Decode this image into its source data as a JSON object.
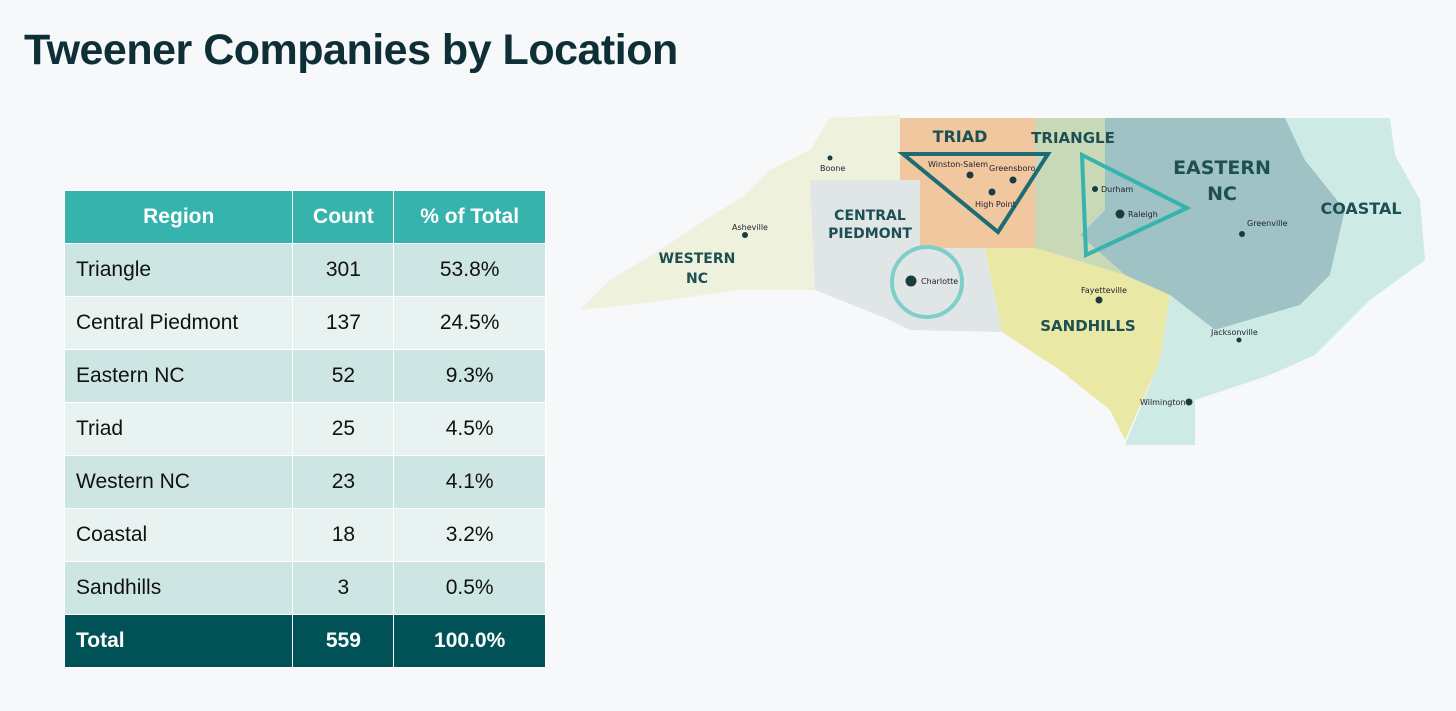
{
  "title": "Tweener Companies by Location",
  "chart_data": {
    "type": "table",
    "columns": [
      "Region",
      "Count",
      "% of Total"
    ],
    "rows": [
      {
        "region": "Triangle",
        "count": "301",
        "pct": "53.8%"
      },
      {
        "region": "Central Piedmont",
        "count": "137",
        "pct": "24.5%"
      },
      {
        "region": "Eastern NC",
        "count": "52",
        "pct": "9.3%"
      },
      {
        "region": "Triad",
        "count": "25",
        "pct": "4.5%"
      },
      {
        "region": "Western NC",
        "count": "23",
        "pct": "4.1%"
      },
      {
        "region": "Coastal",
        "count": "18",
        "pct": "3.2%"
      },
      {
        "region": "Sandhills",
        "count": "3",
        "pct": "0.5%"
      }
    ],
    "total": {
      "region": "Total",
      "count": "559",
      "pct": "100.0%"
    }
  },
  "map": {
    "regions": [
      {
        "id": "western",
        "lines": [
          "WESTERN",
          "NC"
        ],
        "color": "#eef1dc"
      },
      {
        "id": "central",
        "lines": [
          "CENTRAL",
          "PIEDMONT"
        ],
        "color": "#dfe6e5"
      },
      {
        "id": "triad",
        "lines": [
          "TRIAD"
        ],
        "color": "#f1c7a0"
      },
      {
        "id": "triangle",
        "lines": [
          "TRIANGLE"
        ],
        "color": "#c9d9b8"
      },
      {
        "id": "eastern",
        "lines": [
          "EASTERN",
          "NC"
        ],
        "color": "#9fc2c4"
      },
      {
        "id": "coastal",
        "lines": [
          "COASTAL"
        ],
        "color": "#cdebe4"
      },
      {
        "id": "sandhills",
        "lines": [
          "SANDHILLS"
        ],
        "color": "#e9e8a4"
      }
    ],
    "cities": [
      "Boone",
      "Asheville",
      "Winston-Salem",
      "Greensboro",
      "High Point",
      "Charlotte",
      "Durham",
      "Raleigh",
      "Fayetteville",
      "Greenville",
      "Jacksonville",
      "Wilmington"
    ],
    "colors": {
      "outline": "#1d6c73",
      "accent": "#36b3ac",
      "charlotte_ring": "#7ecfca",
      "dot": "#1c3b40"
    }
  }
}
